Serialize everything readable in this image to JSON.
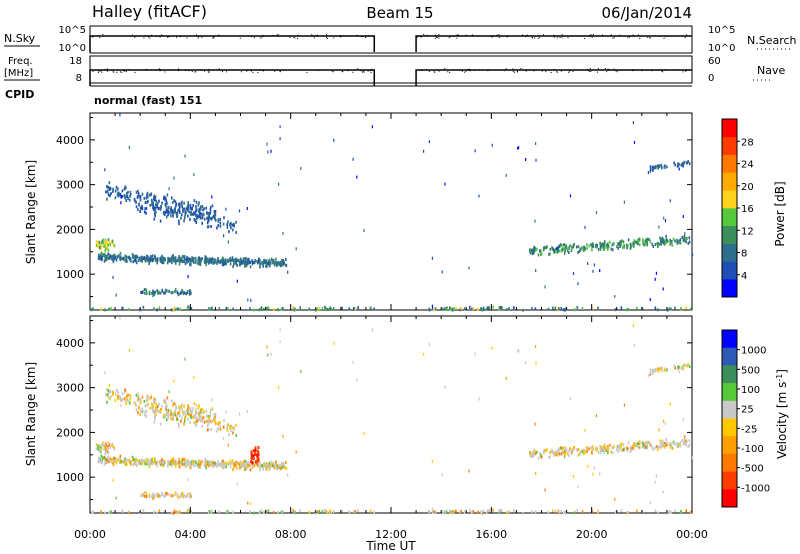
{
  "header": {
    "station": "Halley (fitACF)",
    "beam": "Beam 15",
    "date": "06/Jan/2014"
  },
  "aux_panels": {
    "nsky_label": "N.Sky",
    "nsky_ticks": [
      "10^5",
      "10^0"
    ],
    "nsearch_label": "N.Search",
    "nsearch_ticks": [
      "10^5",
      "10^0"
    ],
    "freq_label": "Freq.",
    "freq_unit": "[MHz]",
    "freq_ticks": [
      "18",
      "8"
    ],
    "nave_label": "Nave",
    "nave_ticks": [
      "60",
      "0"
    ],
    "cpid_label": "CPID",
    "cpid_text": "normal (fast) 151"
  },
  "colors": {
    "power_scale": [
      "#0000ff",
      "#1f4fb4",
      "#2d6e8c",
      "#3c8f5a",
      "#55c83c",
      "#ffd21e",
      "#ffaa00",
      "#ff7800",
      "#ff3c00",
      "#ff0000"
    ],
    "velocity_scale": [
      "#ff0000",
      "#ff3c00",
      "#ff7800",
      "#ffa000",
      "#ffc800",
      "#c8c8c8",
      "#55c83c",
      "#3c8f5a",
      "#2d5ab4",
      "#0000ff"
    ]
  },
  "chart_data": [
    {
      "type": "heatmap",
      "name": "power",
      "ylabel": "Slant Range [km]",
      "yticks": [
        "1000",
        "2000",
        "3000",
        "4000"
      ],
      "ylim": [
        200,
        4600
      ],
      "xlim_hours": [
        0,
        24
      ],
      "colorbar_label": "Power [dB]",
      "colorbar_ticks": [
        "4",
        "8",
        "12",
        "16",
        "20",
        "24",
        "28"
      ],
      "colorbar_range": [
        0,
        30
      ],
      "data_gap_ut": [
        "11:20",
        "13:00"
      ]
    },
    {
      "type": "heatmap",
      "name": "velocity",
      "ylabel": "Slant Range [km]",
      "yticks": [
        "1000",
        "2000",
        "3000",
        "4000"
      ],
      "ylim": [
        200,
        4600
      ],
      "xlim_hours": [
        0,
        24
      ],
      "xlabel": "Time UT",
      "xticks": [
        "00:00",
        "04:00",
        "08:00",
        "12:00",
        "16:00",
        "20:00",
        "00:00"
      ],
      "colorbar_label": "Velocity [m s^-1]",
      "colorbar_ticks": [
        "1000",
        "500",
        "100",
        "25",
        "-25",
        "-100",
        "-500",
        "-1000"
      ],
      "data_gap_ut": [
        "11:20",
        "13:00"
      ]
    }
  ]
}
